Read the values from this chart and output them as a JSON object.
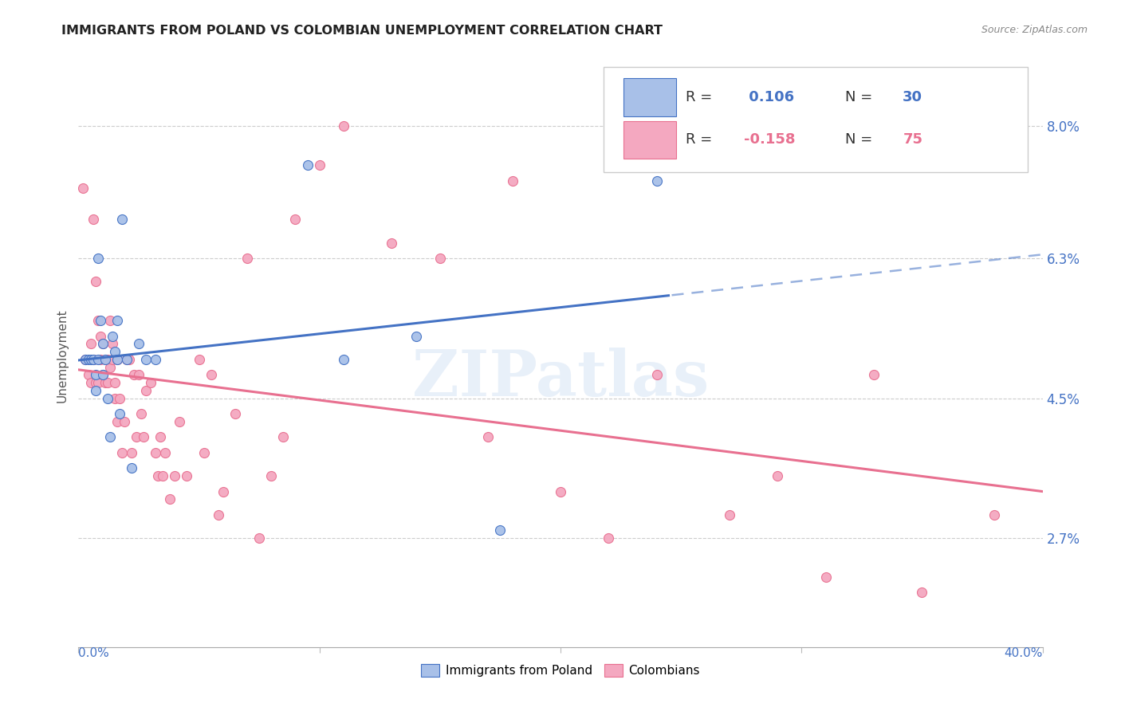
{
  "title": "IMMIGRANTS FROM POLAND VS COLOMBIAN UNEMPLOYMENT CORRELATION CHART",
  "source": "Source: ZipAtlas.com",
  "ylabel": "Unemployment",
  "ytick_labels": [
    "8.0%",
    "6.3%",
    "4.5%",
    "2.7%"
  ],
  "ytick_values": [
    0.08,
    0.063,
    0.045,
    0.027
  ],
  "xlim": [
    0.0,
    0.4
  ],
  "ylim": [
    0.013,
    0.088
  ],
  "legend_r_poland": " 0.106",
  "legend_n_poland": "30",
  "legend_r_colombia": "-0.158",
  "legend_n_colombia": "75",
  "color_poland": "#a8c0e8",
  "color_colombia": "#f4a8c0",
  "color_poland_line": "#4472c4",
  "color_colombia_line": "#e87090",
  "poland_scatter_x": [
    0.003,
    0.004,
    0.005,
    0.006,
    0.007,
    0.007,
    0.008,
    0.008,
    0.009,
    0.01,
    0.01,
    0.011,
    0.012,
    0.013,
    0.014,
    0.015,
    0.016,
    0.016,
    0.017,
    0.018,
    0.02,
    0.022,
    0.025,
    0.028,
    0.032,
    0.095,
    0.11,
    0.14,
    0.175,
    0.24
  ],
  "poland_scatter_y": [
    0.05,
    0.05,
    0.05,
    0.05,
    0.048,
    0.046,
    0.05,
    0.063,
    0.055,
    0.048,
    0.052,
    0.05,
    0.045,
    0.04,
    0.053,
    0.051,
    0.05,
    0.055,
    0.043,
    0.068,
    0.05,
    0.036,
    0.052,
    0.05,
    0.05,
    0.075,
    0.05,
    0.053,
    0.028,
    0.073
  ],
  "colombia_scatter_x": [
    0.002,
    0.003,
    0.004,
    0.005,
    0.005,
    0.006,
    0.006,
    0.007,
    0.007,
    0.008,
    0.008,
    0.009,
    0.009,
    0.01,
    0.01,
    0.011,
    0.011,
    0.012,
    0.012,
    0.013,
    0.013,
    0.014,
    0.014,
    0.015,
    0.015,
    0.016,
    0.016,
    0.017,
    0.018,
    0.019,
    0.02,
    0.021,
    0.022,
    0.023,
    0.024,
    0.025,
    0.026,
    0.027,
    0.028,
    0.03,
    0.032,
    0.033,
    0.034,
    0.035,
    0.036,
    0.038,
    0.04,
    0.042,
    0.045,
    0.05,
    0.052,
    0.055,
    0.058,
    0.06,
    0.065,
    0.07,
    0.075,
    0.08,
    0.085,
    0.09,
    0.1,
    0.11,
    0.13,
    0.15,
    0.17,
    0.18,
    0.2,
    0.22,
    0.24,
    0.27,
    0.29,
    0.31,
    0.33,
    0.35,
    0.38
  ],
  "colombia_scatter_y": [
    0.072,
    0.05,
    0.048,
    0.047,
    0.052,
    0.05,
    0.068,
    0.047,
    0.06,
    0.047,
    0.055,
    0.05,
    0.053,
    0.048,
    0.052,
    0.047,
    0.05,
    0.05,
    0.047,
    0.049,
    0.055,
    0.05,
    0.052,
    0.045,
    0.047,
    0.042,
    0.05,
    0.045,
    0.038,
    0.042,
    0.05,
    0.05,
    0.038,
    0.048,
    0.04,
    0.048,
    0.043,
    0.04,
    0.046,
    0.047,
    0.038,
    0.035,
    0.04,
    0.035,
    0.038,
    0.032,
    0.035,
    0.042,
    0.035,
    0.05,
    0.038,
    0.048,
    0.03,
    0.033,
    0.043,
    0.063,
    0.027,
    0.035,
    0.04,
    0.068,
    0.075,
    0.08,
    0.065,
    0.063,
    0.04,
    0.073,
    0.033,
    0.027,
    0.048,
    0.03,
    0.035,
    0.022,
    0.048,
    0.02,
    0.03
  ],
  "watermark": "ZIPatlas"
}
